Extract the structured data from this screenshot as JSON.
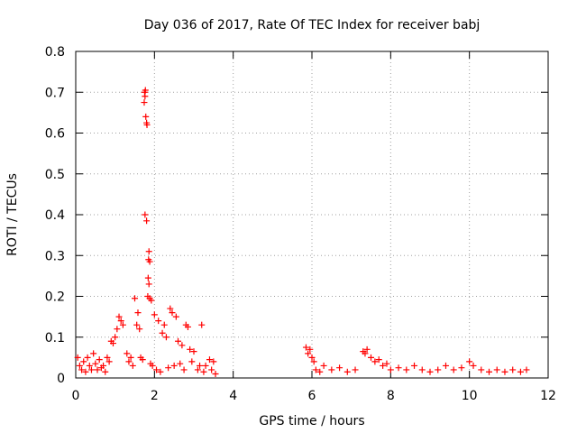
{
  "chart_data": {
    "type": "scatter",
    "title": "Day 036 of 2017, Rate Of TEC Index for receiver babj",
    "xlabel": "GPS time / hours",
    "ylabel": "ROTI / TECUs",
    "xlim": [
      0,
      12
    ],
    "ylim": [
      0,
      0.8
    ],
    "xticks": [
      "0",
      "2",
      "4",
      "6",
      "8",
      "10",
      "12"
    ],
    "yticks": [
      "0",
      "0.1",
      "0.2",
      "0.3",
      "0.4",
      "0.5",
      "0.6",
      "0.7",
      "0.8"
    ],
    "grid": true,
    "marker": "+",
    "color": "#ff0000",
    "series": [
      {
        "name": "ROTI",
        "points": [
          [
            1.75,
            0.7
          ],
          [
            1.77,
            0.705
          ],
          [
            1.76,
            0.69
          ],
          [
            1.74,
            0.675
          ],
          [
            1.78,
            0.64
          ],
          [
            1.8,
            0.625
          ],
          [
            1.81,
            0.62
          ],
          [
            1.76,
            0.4
          ],
          [
            1.8,
            0.385
          ],
          [
            1.86,
            0.31
          ],
          [
            1.85,
            0.29
          ],
          [
            1.88,
            0.285
          ],
          [
            1.84,
            0.245
          ],
          [
            1.86,
            0.23
          ],
          [
            1.83,
            0.2
          ],
          [
            1.88,
            0.195
          ],
          [
            1.92,
            0.19
          ],
          [
            1.5,
            0.195
          ],
          [
            1.58,
            0.16
          ],
          [
            1.55,
            0.13
          ],
          [
            1.62,
            0.12
          ],
          [
            1.1,
            0.15
          ],
          [
            1.15,
            0.14
          ],
          [
            1.05,
            0.12
          ],
          [
            1.2,
            0.13
          ],
          [
            1.0,
            0.1
          ],
          [
            0.9,
            0.09
          ],
          [
            0.95,
            0.085
          ],
          [
            2.0,
            0.155
          ],
          [
            2.1,
            0.14
          ],
          [
            2.25,
            0.13
          ],
          [
            2.4,
            0.17
          ],
          [
            2.45,
            0.16
          ],
          [
            2.55,
            0.15
          ],
          [
            2.8,
            0.13
          ],
          [
            2.85,
            0.125
          ],
          [
            3.2,
            0.13
          ],
          [
            2.2,
            0.11
          ],
          [
            2.3,
            0.1
          ],
          [
            2.6,
            0.09
          ],
          [
            2.7,
            0.08
          ],
          [
            2.9,
            0.07
          ],
          [
            3.0,
            0.065
          ],
          [
            3.4,
            0.045
          ],
          [
            3.5,
            0.04
          ],
          [
            3.3,
            0.03
          ],
          [
            3.45,
            0.02
          ],
          [
            3.55,
            0.01
          ],
          [
            0.05,
            0.05
          ],
          [
            0.1,
            0.03
          ],
          [
            0.15,
            0.02
          ],
          [
            0.2,
            0.04
          ],
          [
            0.25,
            0.015
          ],
          [
            0.3,
            0.05
          ],
          [
            0.35,
            0.03
          ],
          [
            0.4,
            0.02
          ],
          [
            0.45,
            0.06
          ],
          [
            0.5,
            0.035
          ],
          [
            0.55,
            0.02
          ],
          [
            0.6,
            0.045
          ],
          [
            0.65,
            0.025
          ],
          [
            0.7,
            0.03
          ],
          [
            0.75,
            0.015
          ],
          [
            0.8,
            0.05
          ],
          [
            0.85,
            0.04
          ],
          [
            1.3,
            0.06
          ],
          [
            1.35,
            0.04
          ],
          [
            1.4,
            0.05
          ],
          [
            1.45,
            0.03
          ],
          [
            1.65,
            0.05
          ],
          [
            1.7,
            0.045
          ],
          [
            1.9,
            0.035
          ],
          [
            1.95,
            0.03
          ],
          [
            2.05,
            0.02
          ],
          [
            2.15,
            0.015
          ],
          [
            2.35,
            0.025
          ],
          [
            2.5,
            0.03
          ],
          [
            2.65,
            0.035
          ],
          [
            2.75,
            0.02
          ],
          [
            2.95,
            0.04
          ],
          [
            3.1,
            0.02
          ],
          [
            3.15,
            0.03
          ],
          [
            3.25,
            0.015
          ],
          [
            5.85,
            0.075
          ],
          [
            5.9,
            0.06
          ],
          [
            5.95,
            0.07
          ],
          [
            6.0,
            0.05
          ],
          [
            6.05,
            0.04
          ],
          [
            6.1,
            0.02
          ],
          [
            6.2,
            0.015
          ],
          [
            6.3,
            0.03
          ],
          [
            6.5,
            0.02
          ],
          [
            6.7,
            0.025
          ],
          [
            6.9,
            0.015
          ],
          [
            7.1,
            0.02
          ],
          [
            7.3,
            0.065
          ],
          [
            7.35,
            0.06
          ],
          [
            7.4,
            0.07
          ],
          [
            7.5,
            0.05
          ],
          [
            7.6,
            0.04
          ],
          [
            7.7,
            0.045
          ],
          [
            7.8,
            0.03
          ],
          [
            7.9,
            0.035
          ],
          [
            8.0,
            0.02
          ],
          [
            8.2,
            0.025
          ],
          [
            8.4,
            0.02
          ],
          [
            8.6,
            0.03
          ],
          [
            8.8,
            0.02
          ],
          [
            9.0,
            0.015
          ],
          [
            9.2,
            0.02
          ],
          [
            9.4,
            0.03
          ],
          [
            9.6,
            0.02
          ],
          [
            9.8,
            0.025
          ],
          [
            10.0,
            0.04
          ],
          [
            10.1,
            0.03
          ],
          [
            10.3,
            0.02
          ],
          [
            10.5,
            0.015
          ],
          [
            10.7,
            0.02
          ],
          [
            10.9,
            0.015
          ],
          [
            11.1,
            0.02
          ],
          [
            11.3,
            0.015
          ],
          [
            11.45,
            0.02
          ]
        ]
      }
    ]
  }
}
